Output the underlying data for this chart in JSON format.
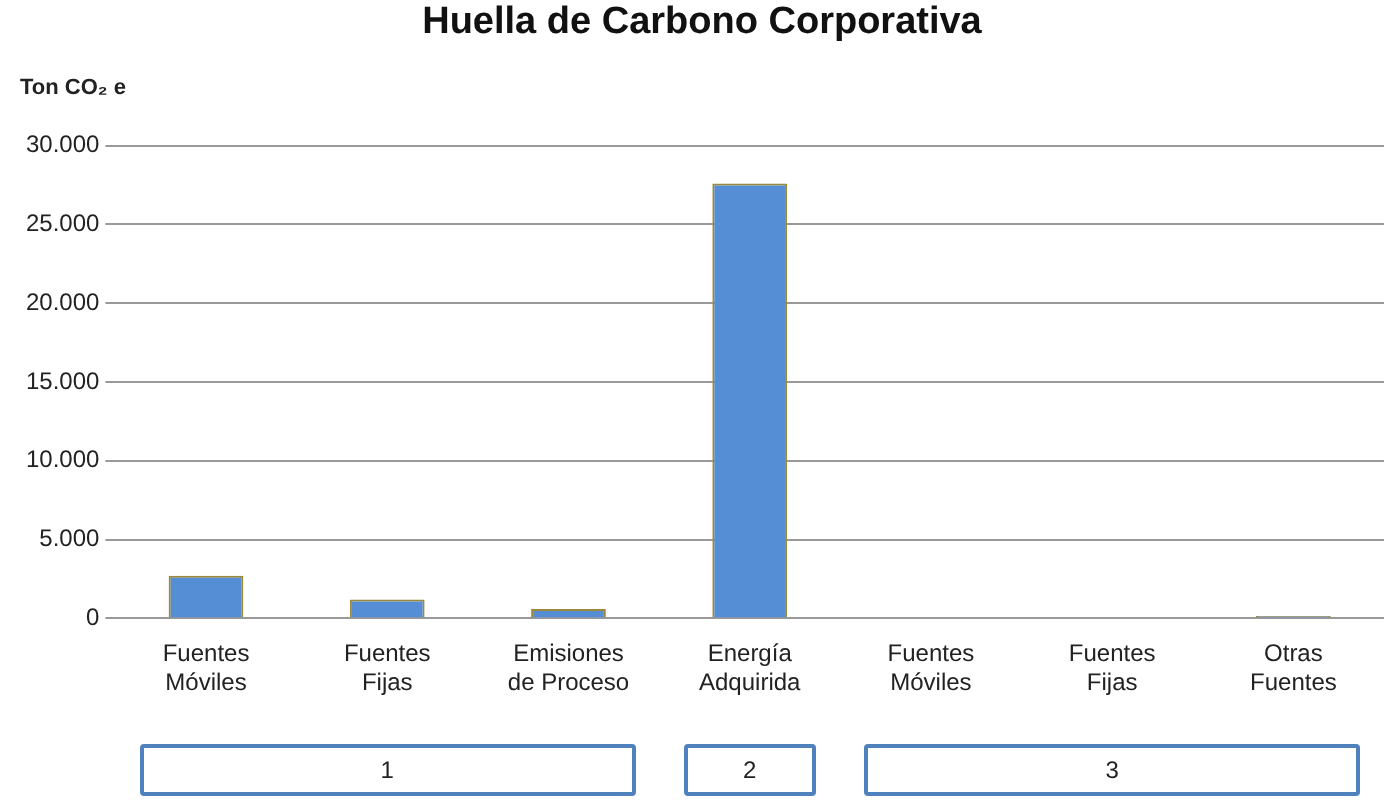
{
  "chart_data": {
    "type": "bar",
    "title": "Huella de Carbono Corporativa",
    "ylabel": "Ton CO₂ e",
    "categories": [
      "Fuentes Móviles",
      "Fuentes Fijas",
      "Emisiones de Proceso",
      "Energía Adquirida",
      "Fuentes Móviles",
      "Fuentes Fijas",
      "Otras Fuentes"
    ],
    "values": [
      2700,
      1200,
      600,
      27600,
      0,
      0,
      150
    ],
    "color": "#558ed5",
    "ylim": [
      0,
      30000
    ],
    "yticks": [
      0,
      {
        "value": 5000,
        "label": "5.000"
      },
      {
        "value": 10000,
        "label": "10.000"
      },
      {
        "value": 15000,
        "label": "15.000"
      },
      {
        "value": 20000,
        "label": "20.000"
      },
      {
        "value": 25000,
        "label": "25.000"
      },
      {
        "value": 30000,
        "label": "30.000"
      }
    ],
    "grid": "y",
    "legend": false,
    "annotations": [
      "1",
      "2",
      "3"
    ]
  }
}
